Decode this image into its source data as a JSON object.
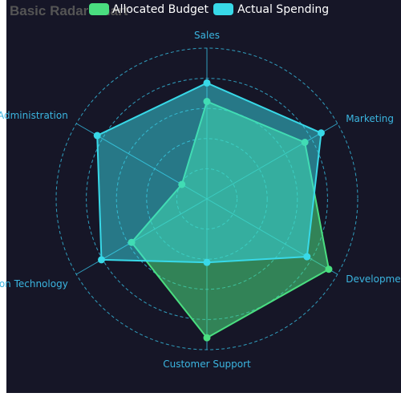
{
  "colors": {
    "background": "#161627",
    "budget": "#4ade80",
    "spending": "#38d9e8",
    "axis_line": "#35b6d9",
    "axis_label": "#3bb5e0",
    "title": "#555555",
    "legend_text": "#ffffff"
  },
  "chart_data": {
    "type": "radar",
    "title": "Basic Radar Chart",
    "indicators": [
      {
        "name": "Sales",
        "max": 6500
      },
      {
        "name": "Marketing",
        "max": 16000
      },
      {
        "name": "Development",
        "max": 30000
      },
      {
        "name": "Customer Support",
        "max": 38000
      },
      {
        "name": "Information Technology",
        "max": 52000
      },
      {
        "name": "Administration",
        "max": 25000
      }
    ],
    "series": [
      {
        "name": "Allocated Budget",
        "values": [
          4200,
          12000,
          28000,
          35000,
          30000,
          4800
        ]
      },
      {
        "name": "Actual Spending",
        "values": [
          5000,
          14000,
          23000,
          16000,
          42000,
          21000
        ]
      }
    ],
    "legend_position": "top",
    "split_number": 5
  }
}
